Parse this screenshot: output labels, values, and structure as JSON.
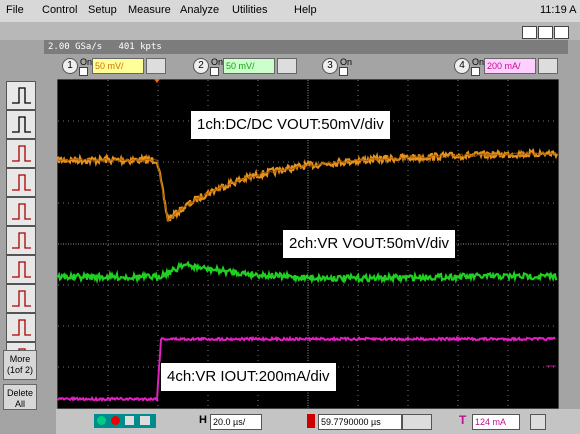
{
  "menu": {
    "items": [
      "File",
      "Control",
      "Setup",
      "Measure",
      "Analyze",
      "Utilities",
      "Help"
    ],
    "clock": "11:19 A"
  },
  "acquisition": {
    "sample_rate": "2.00 GSa/s",
    "memory": "401 kpts"
  },
  "channels": [
    {
      "number": "1",
      "state": "On",
      "scale": "50 mV/"
    },
    {
      "number": "2",
      "state": "On",
      "scale": "50 mV/"
    },
    {
      "number": "3",
      "state": "On"
    },
    {
      "number": "4",
      "state": "On",
      "scale": "200 mA/"
    }
  ],
  "sidebar": {
    "more": [
      "More",
      "(1of 2)"
    ],
    "delete": [
      "Delete",
      "All"
    ]
  },
  "annotations": [
    "1ch:DC/DC VOUT:50mV/div",
    "2ch:VR VOUT:50mV/div",
    "4ch:VR IOUT:200mA/div"
  ],
  "bottom": {
    "h_label": "H",
    "h_scale": "20.0 µs/",
    "position": "59.7790000 µs",
    "t_label": "T",
    "trigger_level": "124 mA"
  }
}
